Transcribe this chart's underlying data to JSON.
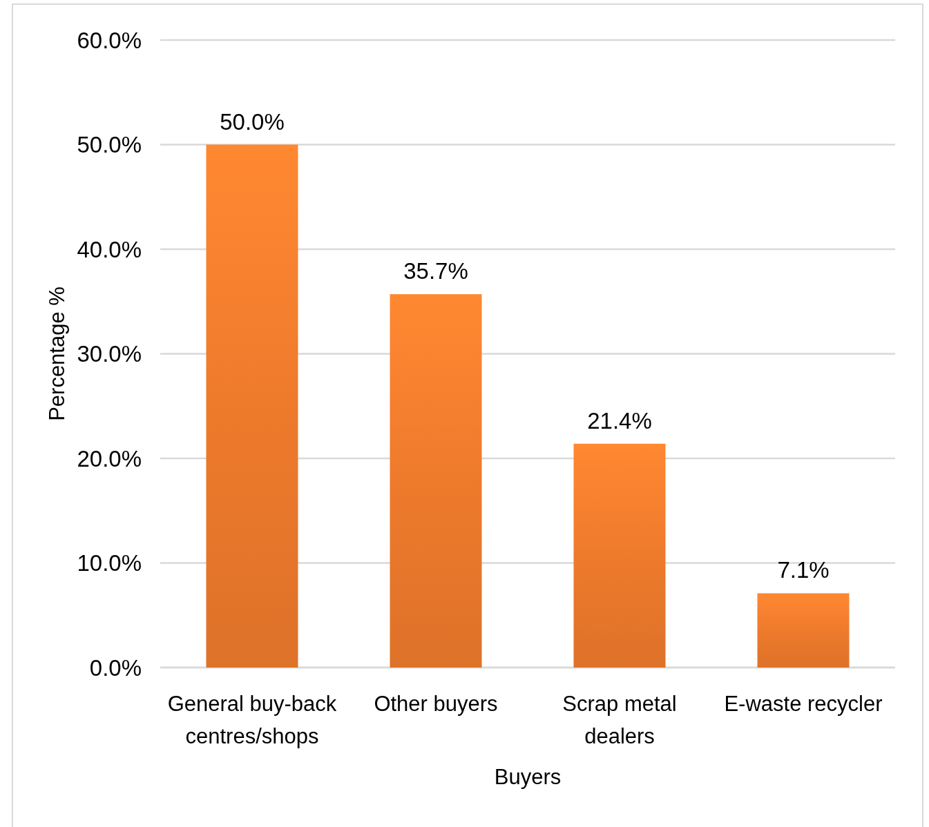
{
  "chart_data": {
    "type": "bar",
    "xlabel": "Buyers",
    "ylabel": "Percentage %",
    "categories": [
      "General buy-back centres/shops",
      "Other buyers",
      "Scrap metal dealers",
      "E-waste recycler"
    ],
    "values": [
      50.0,
      35.7,
      21.4,
      7.1
    ],
    "value_labels": [
      "50.0%",
      "35.7%",
      "21.4%",
      "7.1%"
    ],
    "color": "#ee7a2c",
    "ylim": [
      0,
      60
    ],
    "yticks": [
      {
        "value": 0,
        "label": "0.0%"
      },
      {
        "value": 10,
        "label": "10.0%"
      },
      {
        "value": 20,
        "label": "20.0%"
      },
      {
        "value": 30,
        "label": "30.0%"
      },
      {
        "value": 40,
        "label": "40.0%"
      },
      {
        "value": 50,
        "label": "50.0%"
      },
      {
        "value": 60,
        "label": "60.0%"
      }
    ],
    "grid": "y"
  }
}
